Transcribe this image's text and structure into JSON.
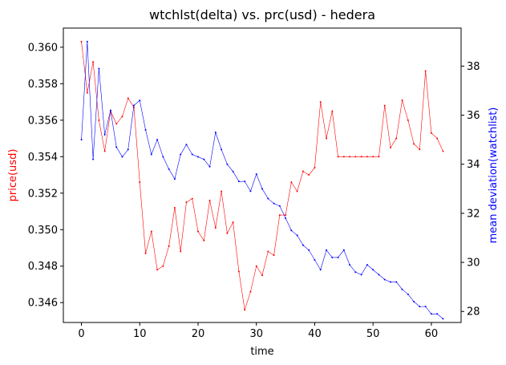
{
  "chart_data": {
    "type": "line",
    "title": "wtchlst(delta) vs. prc(usd) - hedera",
    "xlabel": "time",
    "ylabel_left": "price(usd)",
    "ylabel_right": "mean deviation(watchlist)",
    "xlim": [
      -3.1,
      65.1
    ],
    "ylim_left": [
      0.34491,
      0.36105
    ],
    "ylim_right": [
      27.55,
      39.55
    ],
    "x_ticks": [
      0,
      10,
      20,
      30,
      40,
      50,
      60
    ],
    "y_left_ticks": [
      "0.346",
      "0.348",
      "0.350",
      "0.352",
      "0.354",
      "0.356",
      "0.358",
      "0.360"
    ],
    "y_right_ticks": [
      "28",
      "30",
      "32",
      "34",
      "36",
      "38"
    ],
    "grid": false,
    "colors": {
      "left_series": "#ff0000",
      "right_series": "#0000ff",
      "left_label": "#ff0000",
      "right_label": "#0000ff"
    },
    "series": [
      {
        "axis": "left",
        "x": [
          0,
          1,
          2,
          3,
          4,
          5,
          6,
          7,
          8,
          9,
          10,
          11,
          12,
          13,
          14,
          15,
          16,
          17,
          18,
          19,
          20,
          21,
          22,
          23,
          24,
          25,
          26,
          27,
          28,
          29,
          30,
          31,
          32,
          33,
          34,
          35,
          36,
          37,
          38,
          39,
          40,
          41,
          42,
          43,
          44,
          45,
          46,
          47,
          48,
          49,
          50,
          51,
          52,
          53,
          54,
          55,
          56,
          57,
          58,
          59,
          60,
          61,
          62
        ],
        "values": [
          0.3603,
          0.3575,
          0.3592,
          0.356,
          0.3543,
          0.3565,
          0.3558,
          0.3562,
          0.3572,
          0.3567,
          0.3526,
          0.3487,
          0.3499,
          0.3478,
          0.348,
          0.3491,
          0.3512,
          0.3488,
          0.3515,
          0.3517,
          0.3499,
          0.3494,
          0.3516,
          0.3501,
          0.3521,
          0.3498,
          0.3504,
          0.3477,
          0.3456,
          0.3466,
          0.348,
          0.3475,
          0.3488,
          0.3486,
          0.3508,
          0.3508,
          0.3526,
          0.3521,
          0.3532,
          0.353,
          0.3534,
          0.357,
          0.355,
          0.3565,
          0.354,
          0.354,
          0.354,
          0.354,
          0.354,
          0.354,
          0.354,
          0.354,
          0.3568,
          0.3545,
          0.355,
          0.3571,
          0.356,
          0.3547,
          0.3544,
          0.3587,
          0.3553,
          0.355,
          0.3543
        ]
      },
      {
        "axis": "right",
        "x": [
          0,
          1,
          2,
          3,
          4,
          5,
          6,
          7,
          8,
          9,
          10,
          11,
          12,
          13,
          14,
          15,
          16,
          17,
          18,
          19,
          20,
          21,
          22,
          23,
          24,
          25,
          26,
          27,
          28,
          29,
          30,
          31,
          32,
          33,
          34,
          35,
          36,
          37,
          38,
          39,
          40,
          41,
          42,
          43,
          44,
          45,
          46,
          47,
          48,
          49,
          50,
          51,
          52,
          53,
          54,
          55,
          56,
          57,
          58,
          59,
          60,
          61,
          62
        ],
        "values": [
          35.0,
          39.0,
          34.2,
          37.9,
          35.2,
          36.2,
          34.7,
          34.3,
          34.6,
          36.4,
          36.6,
          35.4,
          34.4,
          35.0,
          34.3,
          33.8,
          33.4,
          34.4,
          34.8,
          34.4,
          34.3,
          34.2,
          33.9,
          35.3,
          34.6,
          34.0,
          33.7,
          33.3,
          33.3,
          32.9,
          33.6,
          33.0,
          32.6,
          32.4,
          32.3,
          31.8,
          31.3,
          31.1,
          30.7,
          30.5,
          30.1,
          29.7,
          30.5,
          30.2,
          30.2,
          30.5,
          29.9,
          29.6,
          29.5,
          29.9,
          29.7,
          29.5,
          29.3,
          29.2,
          29.2,
          28.9,
          28.7,
          28.4,
          28.2,
          28.2,
          27.9,
          27.9,
          27.7
        ]
      }
    ]
  }
}
